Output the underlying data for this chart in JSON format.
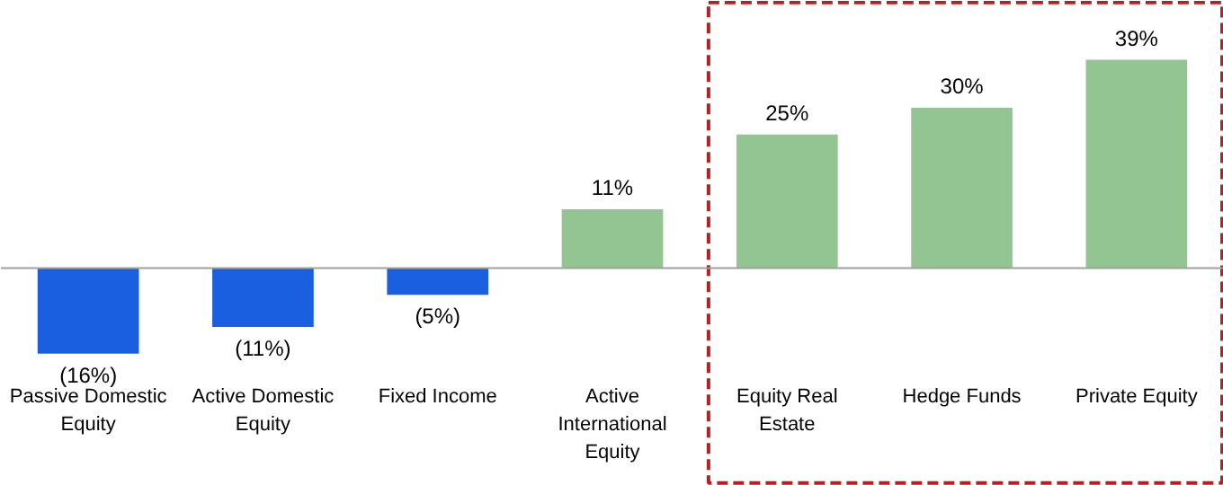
{
  "chart_data": {
    "type": "bar",
    "categories": [
      "Passive Domestic Equity",
      "Active Domestic Equity",
      "Fixed Income",
      "Active International Equity",
      "Equity Real Estate",
      "Hedge Funds",
      "Private Equity"
    ],
    "values": [
      -16,
      -11,
      -5,
      11,
      25,
      30,
      39
    ],
    "colors": [
      "#1a5fe0",
      "#1a5fe0",
      "#1a5fe0",
      "#93c593",
      "#93c593",
      "#93c593",
      "#93c593"
    ],
    "value_labels": [
      "(16%)",
      "(11%)",
      "(5%)",
      "11%",
      "25%",
      "30%",
      "39%"
    ],
    "grid": false
  }
}
